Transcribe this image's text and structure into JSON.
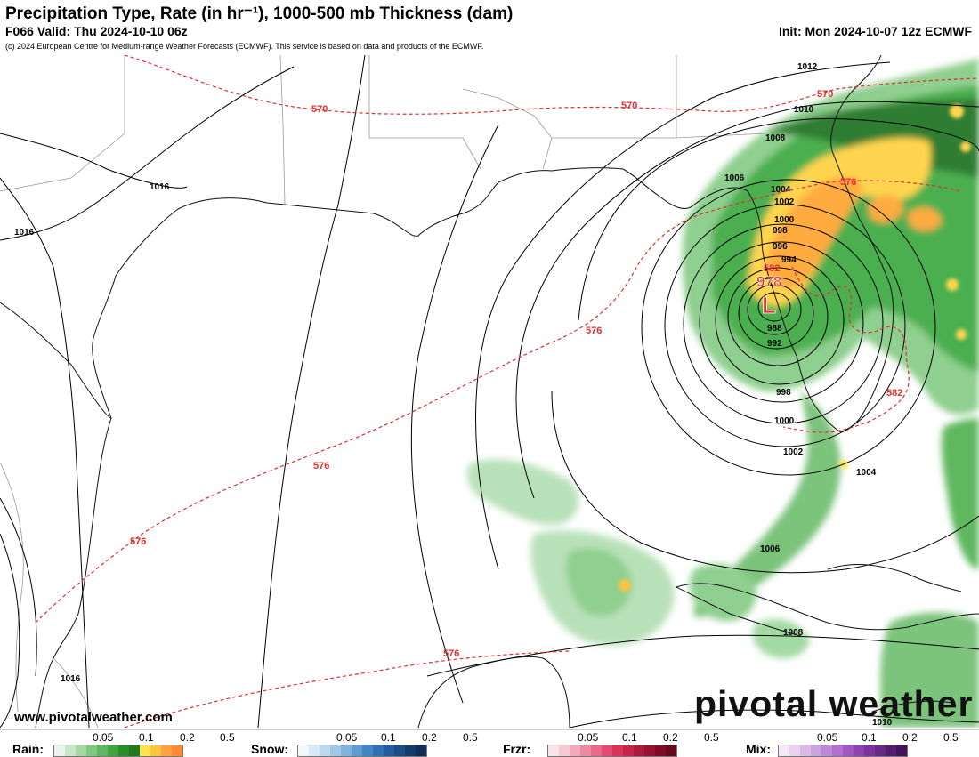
{
  "header": {
    "title": "Precipitation Type, Rate (in hr⁻¹), 1000-500 mb Thickness (dam)",
    "valid": "F066 Valid: Thu 2024-10-10 06z",
    "init": "Init: Mon 2024-10-07 12z ECMWF",
    "copyright": "(c) 2024 European Centre for Medium-range Weather Forecasts (ECMWF). This service is based on data and products of the ECMWF."
  },
  "map": {
    "low_center": {
      "symbol": "L",
      "pressure": "978"
    },
    "isobar_labels": [
      "1012",
      "1010",
      "1008",
      "1006",
      "1004",
      "1002",
      "1000",
      "998",
      "996",
      "994",
      "988",
      "992",
      "998",
      "1000",
      "1002",
      "1004",
      "1006",
      "1008",
      "1010",
      "1016",
      "1016",
      "1016"
    ],
    "thickness_labels": [
      "570",
      "570",
      "570",
      "576",
      "576",
      "576",
      "576",
      "576",
      "582",
      "582"
    ],
    "colors": {
      "isobar": "#000000",
      "thickness": "#e03030",
      "coast": "#111111",
      "border": "#888888"
    }
  },
  "footer": {
    "website": "www.pivotalweather.com",
    "brand": "pivotal weather"
  },
  "legend": [
    {
      "name": "Rain:",
      "ticks": [
        "0.05",
        "0.1",
        "0.2",
        "0.5"
      ],
      "colors": [
        "#e8f5e8",
        "#c6e8c6",
        "#a3d9a3",
        "#7fc87f",
        "#5fb85f",
        "#3fa53f",
        "#2a8c2a",
        "#1f7a1f",
        "#ffe24d",
        "#ffc340",
        "#ffa340",
        "#ff8a33"
      ]
    },
    {
      "name": "Snow:",
      "ticks": [
        "0.05",
        "0.1",
        "0.2",
        "0.5"
      ],
      "colors": [
        "#f2f7fc",
        "#d9eaf7",
        "#bcd9f0",
        "#9fc7e8",
        "#7fb2df",
        "#5f9cd4",
        "#4285c7",
        "#2f6fb3",
        "#235c9c",
        "#1a4c85",
        "#113c6e",
        "#0b2f5a"
      ]
    },
    {
      "name": "Frzr:",
      "ticks": [
        "0.05",
        "0.1",
        "0.2",
        "0.5"
      ],
      "colors": [
        "#fbe4ea",
        "#f7c9d4",
        "#f2a9bb",
        "#ed89a2",
        "#e86a8a",
        "#e34b72",
        "#d9345c",
        "#c4254b",
        "#ae1a3d",
        "#971230",
        "#800b25",
        "#6a061b"
      ]
    },
    {
      "name": "Mix:",
      "ticks": [
        "0.05",
        "0.1",
        "0.2",
        "0.5"
      ],
      "colors": [
        "#f5e9f8",
        "#ead3f1",
        "#dcbae8",
        "#cea1df",
        "#c088d6",
        "#b26fcd",
        "#a356c2",
        "#9043b0",
        "#7c349b",
        "#682885",
        "#551d70",
        "#43145b"
      ]
    }
  ]
}
